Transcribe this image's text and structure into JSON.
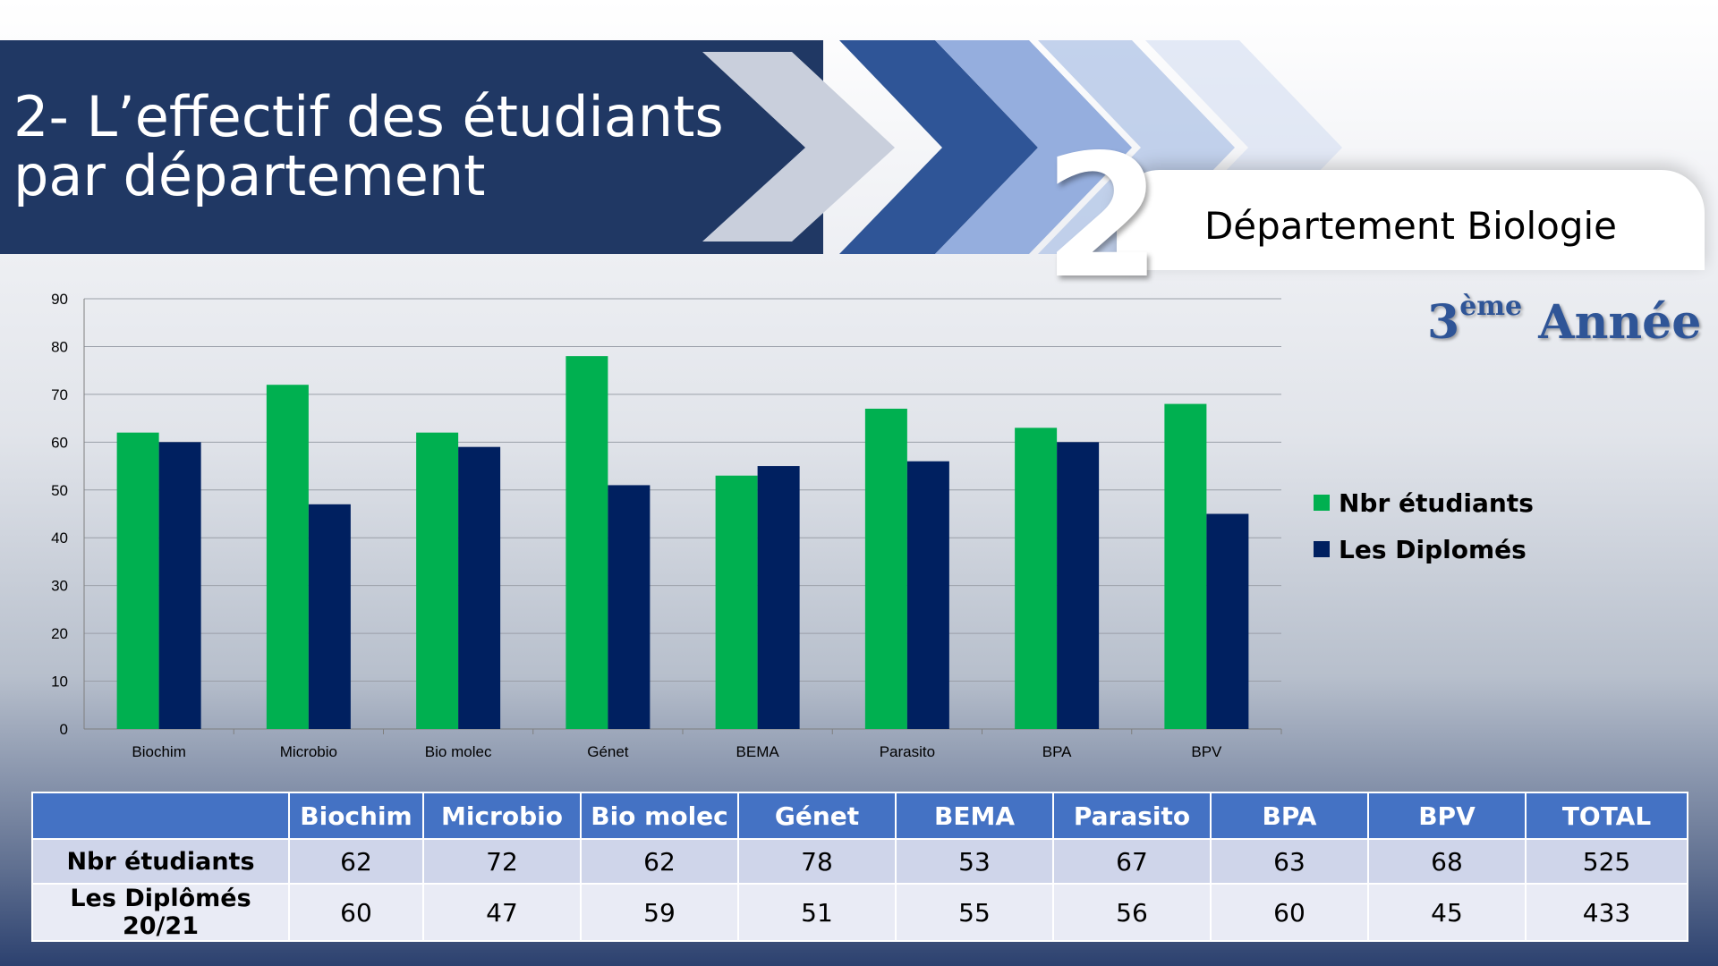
{
  "header": {
    "title": "2- L’effectif des étudiants par département",
    "step_number": "2",
    "department": "Département Biologie",
    "year_main": "3",
    "year_sup": "ème",
    "year_word": "Année"
  },
  "colors": {
    "banner": "#203864",
    "series1": "#00b050",
    "series2": "#002060",
    "table_header": "#4472c4",
    "accent_text": "#2f5597"
  },
  "chart_data": {
    "type": "bar",
    "categories": [
      "Biochim",
      "Microbio",
      "Bio molec",
      "Génet",
      "BEMA",
      "Parasito",
      "BPA",
      "BPV"
    ],
    "series": [
      {
        "name": "Nbr étudiants",
        "values": [
          62,
          72,
          62,
          78,
          53,
          67,
          63,
          68
        ],
        "color": "#00b050"
      },
      {
        "name": "Les Diplomés",
        "values": [
          60,
          47,
          59,
          51,
          55,
          56,
          60,
          45
        ],
        "color": "#002060"
      }
    ],
    "ylim": [
      0,
      90
    ],
    "yticks": [
      0,
      10,
      20,
      30,
      40,
      50,
      60,
      70,
      80,
      90
    ],
    "grid": true,
    "legend": "right"
  },
  "table": {
    "headers": [
      "",
      "Biochim",
      "Microbio",
      "Bio molec",
      "Génet",
      "BEMA",
      "Parasito",
      "BPA",
      "BPV",
      "TOTAL"
    ],
    "rows": [
      {
        "label": "Nbr étudiants",
        "cells": [
          "62",
          "72",
          "62",
          "78",
          "53",
          "67",
          "63",
          "68",
          "525"
        ]
      },
      {
        "label": "Les Diplômés 20/21",
        "cells": [
          "60",
          "47",
          "59",
          "51",
          "55",
          "56",
          "60",
          "45",
          "433"
        ]
      }
    ]
  }
}
